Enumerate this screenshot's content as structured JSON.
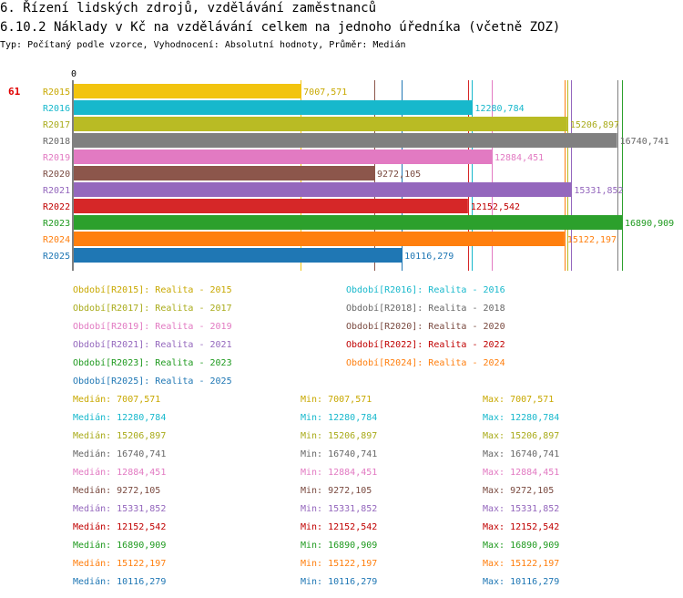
{
  "header": {
    "title": "6. Řízení lidských zdrojů, vzdělávání zaměstnanců",
    "subtitle": "6.10.2 Náklady v Kč na vzdělávání celkem na jednoho úředníka (včetně ZOZ)",
    "type_line": "Typ: Počítaný podle vzorce, Vyhodnocení: Absolutní hodnoty, Průměr: Medián"
  },
  "rank": "61",
  "chart_data": {
    "type": "bar",
    "orientation": "horizontal",
    "axis_zero_label": "0",
    "xlim": [
      0,
      17000
    ],
    "categories": [
      "R2015",
      "R2016",
      "R2017",
      "R2018",
      "R2019",
      "R2020",
      "R2021",
      "R2022",
      "R2023",
      "R2024",
      "R2025"
    ],
    "values": [
      7007.571,
      12280.784,
      15206.897,
      16740.741,
      12884.451,
      9272.105,
      15331.852,
      12152.542,
      16890.909,
      15122.197,
      10116.279
    ],
    "value_labels": [
      "7007,571",
      "12280,784",
      "15206,897",
      "16740,741",
      "12884,451",
      "9272,105",
      "15331,852",
      "12152,542",
      "16890,909",
      "15122,197",
      "10116,279"
    ],
    "colors": [
      "#f2c40f",
      "#17b8cc",
      "#b9bb24",
      "#808080",
      "#e27ac2",
      "#8c564b",
      "#9467bd",
      "#d62728",
      "#2ca02c",
      "#ff7f0e",
      "#1f77b4"
    ],
    "label_colors": [
      "#c8a800",
      "#17b8cc",
      "#a9ab1a",
      "#666666",
      "#e27ac2",
      "#7a4a40",
      "#9467bd",
      "#c00000",
      "#1f9a1f",
      "#ff7f0e",
      "#1f77b4"
    ]
  },
  "legend": [
    "Období[R2015]: Realita - 2015",
    "Období[R2016]: Realita - 2016",
    "Období[R2017]: Realita - 2017",
    "Období[R2018]: Realita - 2018",
    "Období[R2019]: Realita - 2019",
    "Období[R2020]: Realita - 2020",
    "Období[R2021]: Realita - 2021",
    "Období[R2022]: Realita - 2022",
    "Období[R2023]: Realita - 2023",
    "Období[R2024]: Realita - 2024",
    "Období[R2025]: Realita - 2025"
  ],
  "stats": [
    {
      "median": "Medián: 7007,571",
      "min": "Min: 7007,571",
      "max": "Max: 7007,571"
    },
    {
      "median": "Medián: 12280,784",
      "min": "Min: 12280,784",
      "max": "Max: 12280,784"
    },
    {
      "median": "Medián: 15206,897",
      "min": "Min: 15206,897",
      "max": "Max: 15206,897"
    },
    {
      "median": "Medián: 16740,741",
      "min": "Min: 16740,741",
      "max": "Max: 16740,741"
    },
    {
      "median": "Medián: 12884,451",
      "min": "Min: 12884,451",
      "max": "Max: 12884,451"
    },
    {
      "median": "Medián: 9272,105",
      "min": "Min: 9272,105",
      "max": "Max: 9272,105"
    },
    {
      "median": "Medián: 15331,852",
      "min": "Min: 15331,852",
      "max": "Max: 15331,852"
    },
    {
      "median": "Medián: 12152,542",
      "min": "Min: 12152,542",
      "max": "Max: 12152,542"
    },
    {
      "median": "Medián: 16890,909",
      "min": "Min: 16890,909",
      "max": "Max: 16890,909"
    },
    {
      "median": "Medián: 15122,197",
      "min": "Min: 15122,197",
      "max": "Max: 15122,197"
    },
    {
      "median": "Medián: 10116,279",
      "min": "Min: 10116,279",
      "max": "Max: 10116,279"
    }
  ]
}
